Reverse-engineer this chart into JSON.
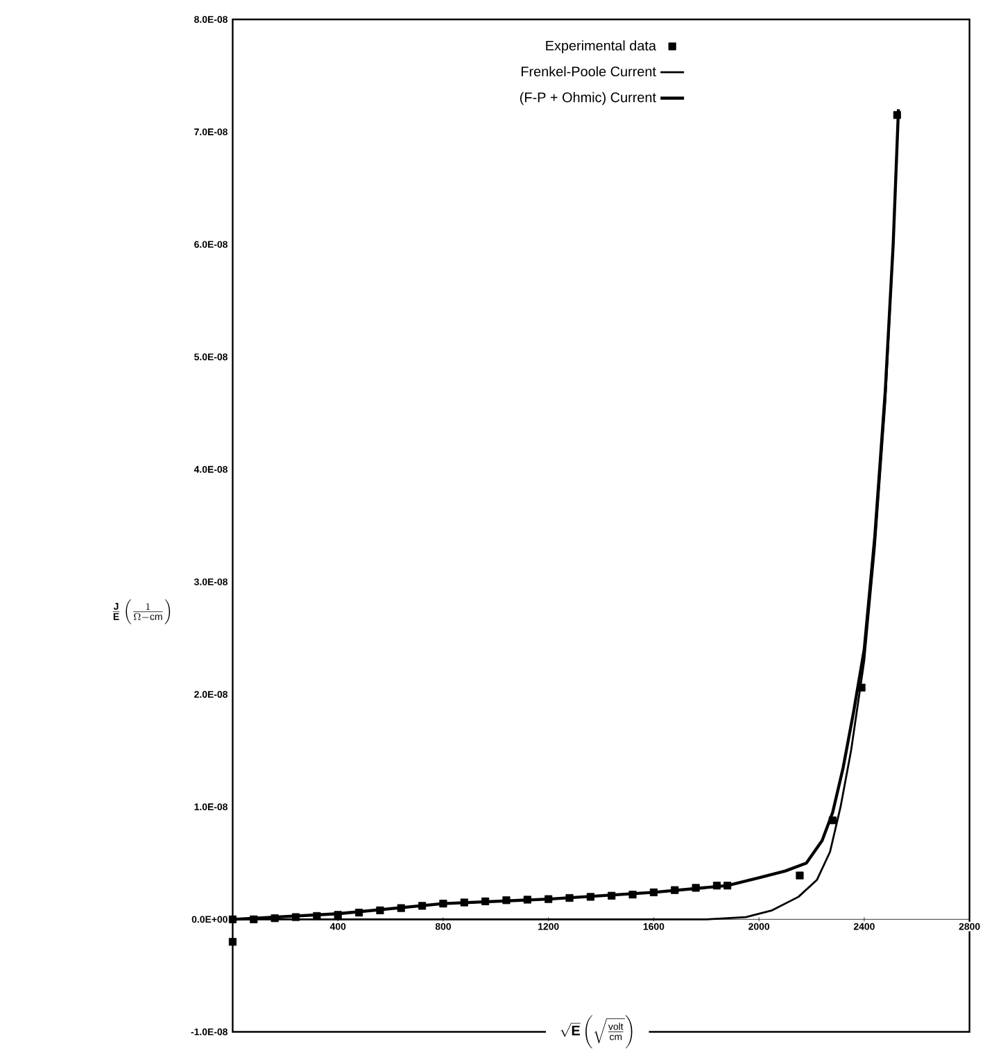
{
  "chart_data": {
    "type": "scatter",
    "xlabel": "\\sqrt{\\mathbf{E}}\\left(\\sqrt{\\frac{\\mathrm{volt}}{\\mathrm{cm}}}\\right)",
    "ylabel": "\\frac{\\mathbf{J}}{\\mathbf{E}}\\left(\\frac{1}{\\Omega-\\mathrm{cm}}\\right)",
    "xlim": [
      0,
      2800
    ],
    "ylim": [
      -1e-08,
      8e-08
    ],
    "xticks": [
      400,
      800,
      1200,
      1600,
      2000,
      2400,
      2800
    ],
    "yticks": [
      {
        "value": -1e-08,
        "label": "-1.0E-08"
      },
      {
        "value": 0,
        "label": "0.0E+00"
      },
      {
        "value": 1e-08,
        "label": "1.0E-08"
      },
      {
        "value": 2e-08,
        "label": "2.0E-08"
      },
      {
        "value": 3e-08,
        "label": "3.0E-08"
      },
      {
        "value": 4e-08,
        "label": "4.0E-08"
      },
      {
        "value": 5e-08,
        "label": "5.0E-08"
      },
      {
        "value": 6e-08,
        "label": "6.0E-08"
      },
      {
        "value": 7e-08,
        "label": "7.0E-08"
      },
      {
        "value": 8e-08,
        "label": "8.0E-08"
      }
    ],
    "legend": "top",
    "series": [
      {
        "name": "Experimental data",
        "marker": "square",
        "color": "#000000",
        "x": [
          0,
          0,
          80,
          160,
          240,
          320,
          400,
          480,
          560,
          640,
          720,
          800,
          880,
          960,
          1040,
          1120,
          1200,
          1280,
          1360,
          1440,
          1520,
          1600,
          1680,
          1760,
          1840,
          1880,
          2155,
          2280,
          2390,
          2525
        ],
        "values": [
          -2e-09,
          0,
          0,
          1e-10,
          2e-10,
          3e-10,
          4e-10,
          6e-10,
          8e-10,
          1e-09,
          1.2e-09,
          1.4e-09,
          1.5e-09,
          1.6e-09,
          1.7e-09,
          1.75e-09,
          1.8e-09,
          1.9e-09,
          2e-09,
          2.1e-09,
          2.2e-09,
          2.4e-09,
          2.6e-09,
          2.8e-09,
          3e-09,
          3e-09,
          3.9e-09,
          8.8e-09,
          2.06e-08,
          7.15e-08
        ]
      },
      {
        "name": "Frenkel-Poole Current",
        "type": "line",
        "marker": "none",
        "color": "#000000",
        "x": [
          0,
          1000,
          1800,
          1950,
          2050,
          2150,
          2220,
          2270,
          2310,
          2350,
          2400,
          2440,
          2480,
          2510,
          2530
        ],
        "values": [
          0,
          0,
          0,
          2e-10,
          8e-10,
          2e-09,
          3.5e-09,
          6e-09,
          1e-08,
          1.5e-08,
          2.3e-08,
          3.3e-08,
          4.6e-08,
          6e-08,
          7.2e-08
        ]
      },
      {
        "name": "(F-P + Ohmic) Current",
        "type": "line",
        "marker": "none",
        "color": "#000000",
        "x": [
          0,
          400,
          800,
          1200,
          1600,
          1880,
          2000,
          2100,
          2180,
          2240,
          2280,
          2320,
          2360,
          2400,
          2440,
          2480,
          2510,
          2530
        ],
        "values": [
          0,
          5e-10,
          1.4e-09,
          1.8e-09,
          2.4e-09,
          3e-09,
          3.7e-09,
          4.3e-09,
          5e-09,
          7e-09,
          9.5e-09,
          1.35e-08,
          1.85e-08,
          2.4e-08,
          3.4e-08,
          4.7e-08,
          6e-08,
          7.2e-08
        ]
      }
    ]
  }
}
